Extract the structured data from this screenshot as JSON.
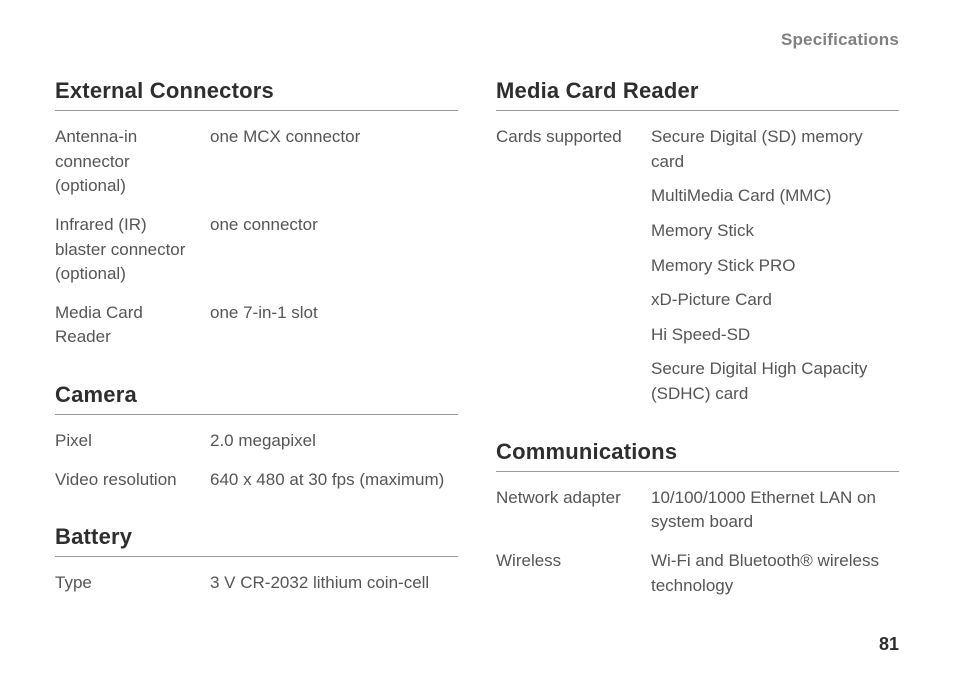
{
  "page": {
    "header": "Specifications",
    "number": "81",
    "colors": {
      "background": "#ffffff",
      "heading_text": "#2e2e2e",
      "body_text": "#555555",
      "header_text": "#808080",
      "divider": "#9a9a9a"
    },
    "typography": {
      "heading_fontsize_pt": 16,
      "body_fontsize_pt": 13,
      "heading_weight": "bold",
      "heading_family": "Arial Narrow"
    }
  },
  "left": {
    "external_connectors": {
      "title": "External Connectors",
      "rows": [
        {
          "label": "Antenna-in connector (optional)",
          "value": "one MCX connector"
        },
        {
          "label": "Infrared (IR) blaster connector (optional)",
          "value": "one connector"
        },
        {
          "label": "Media Card Reader",
          "value": "one 7-in-1 slot"
        }
      ]
    },
    "camera": {
      "title": "Camera",
      "rows": [
        {
          "label": "Pixel",
          "value": "2.0 megapixel"
        },
        {
          "label": "Video resolution",
          "value": "640 x 480 at 30 fps (maximum)"
        }
      ]
    },
    "battery": {
      "title": "Battery",
      "rows": [
        {
          "label": "Type",
          "value": "3 V CR-2032 lithium coin-cell"
        }
      ]
    }
  },
  "right": {
    "media_card_reader": {
      "title": "Media Card Reader",
      "label": "Cards supported",
      "values": [
        "Secure Digital (SD) memory card",
        "MultiMedia Card (MMC)",
        "Memory Stick",
        "Memory Stick PRO",
        "xD-Picture Card",
        "Hi Speed-SD",
        "Secure Digital High Capacity (SDHC) card"
      ]
    },
    "communications": {
      "title": "Communications",
      "rows": [
        {
          "label": "Network adapter",
          "value": "10/100/1000 Ethernet LAN on system board"
        },
        {
          "label": "Wireless",
          "value": "Wi-Fi and Bluetooth® wireless technology"
        }
      ]
    }
  }
}
